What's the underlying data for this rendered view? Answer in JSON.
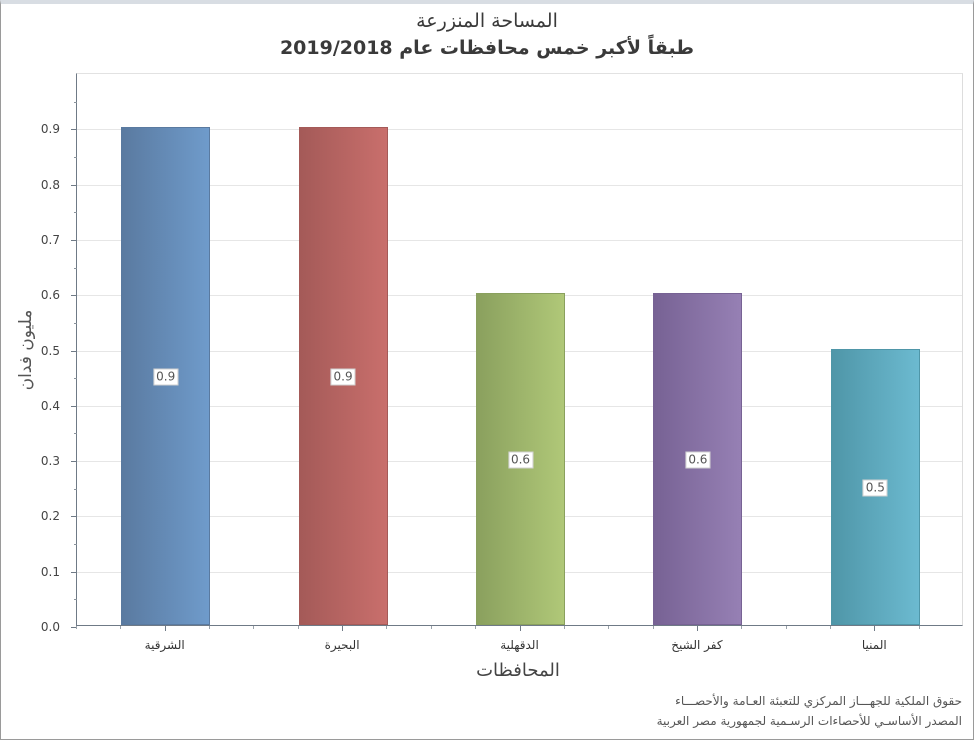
{
  "chart_data": {
    "type": "bar",
    "title": "المساحة المنزرعة",
    "subtitle": "طبقاً لأكبر خمس محافظات  عام 2019/2018",
    "categories": [
      "الشرقية",
      "البحيرة",
      "الدقهلية",
      "كفر الشيخ",
      "المنيا"
    ],
    "values": [
      0.9,
      0.9,
      0.6,
      0.6,
      0.5
    ],
    "data_labels": [
      "0.9",
      "0.9",
      "0.6",
      "0.6",
      "0.5"
    ],
    "colors": [
      {
        "dark": "#5a7aa0",
        "light": "#6f9bcb"
      },
      {
        "dark": "#a45a58",
        "light": "#c96f6c"
      },
      {
        "dark": "#8aa05e",
        "light": "#b0c878"
      },
      {
        "dark": "#776294",
        "light": "#9680b4"
      },
      {
        "dark": "#4f96a8",
        "light": "#6cbad0"
      }
    ],
    "xlabel": "المحافظات",
    "ylabel": "مليون فدان",
    "ylim": [
      0.0,
      1.0
    ],
    "yticks": [
      "0.0",
      "0.1",
      "0.2",
      "0.3",
      "0.4",
      "0.5",
      "0.6",
      "0.7",
      "0.8",
      "0.9"
    ],
    "grid": true,
    "legend": "none"
  },
  "footer": {
    "line1": "حقوق الملكية للجهـــاز المركزي للتعبئة العـامة والأحصـــاء",
    "line2": "المصدر الأساسـي للأحصاءات الرسـمية لجمهورية مصر العربية"
  }
}
